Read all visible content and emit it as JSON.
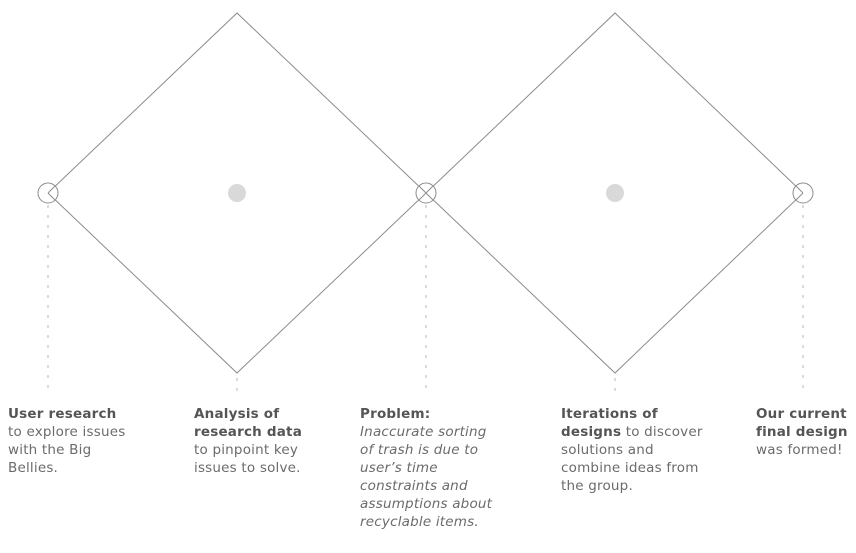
{
  "colors": {
    "line": "#8c8c8c",
    "dash": "#cfcfcf",
    "dot": "#d9d9d9",
    "text": "#6b6b6b",
    "text_strong": "#555555"
  },
  "stages": [
    {
      "title": "User research",
      "text": "to explore issues with the Big Bellies."
    },
    {
      "title": "Analysis of research data",
      "text": "to pinpoint key issues to solve."
    },
    {
      "title": "Problem:",
      "text": "Inaccurate sorting of trash is due to user’s time constraints and assumptions about recyclable items."
    },
    {
      "title": "Iterations of designs",
      "text": "to discover solutions and combine ideas from the group."
    },
    {
      "title": "Our current final design",
      "text": "was formed!"
    }
  ]
}
